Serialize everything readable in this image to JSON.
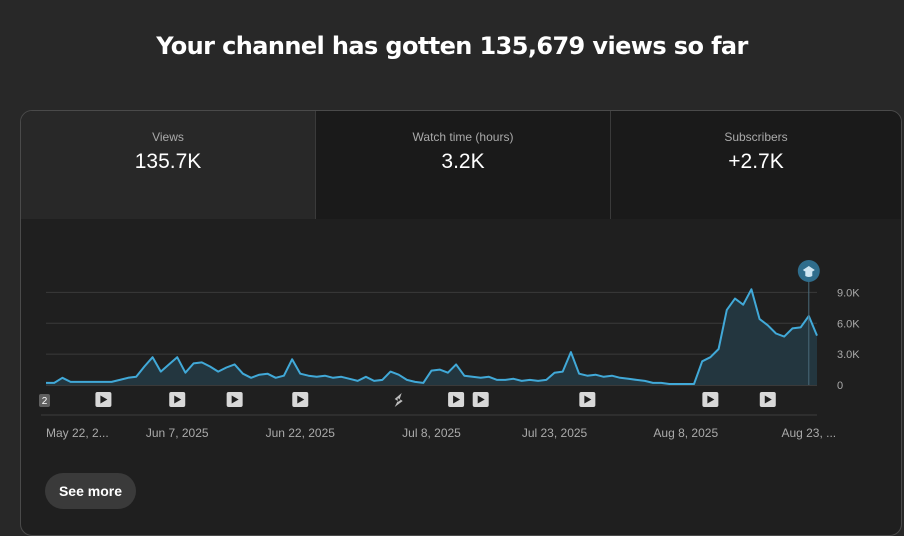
{
  "headline": "Your channel has gotten 135,679 views so far",
  "tabs": [
    {
      "label": "Views",
      "value": "135.7K"
    },
    {
      "label": "Watch time (hours)",
      "value": "3.2K"
    },
    {
      "label": "Subscribers",
      "value": "+2.7K"
    }
  ],
  "see_more_label": "See more",
  "colors": {
    "line": "#41a9d8",
    "area": "#23363f",
    "grid": "#3a3a3a"
  },
  "chart_data": {
    "type": "area",
    "series": [
      {
        "values": [
          200,
          200,
          700,
          300,
          300,
          300,
          300,
          300,
          300,
          500,
          700,
          800,
          1800,
          2700,
          1300,
          2000,
          2700,
          1200,
          2100,
          2200,
          1800,
          1300,
          1700,
          2000,
          1100,
          700,
          1000,
          1100,
          700,
          900,
          2500,
          1100,
          900,
          800,
          900,
          700,
          800,
          600,
          400,
          800,
          400,
          500,
          1300,
          1000,
          500,
          300,
          200,
          1400,
          1500,
          1200,
          2000,
          900,
          800,
          700,
          800,
          500,
          500,
          600,
          400,
          500,
          400,
          500,
          1200,
          1300,
          3200,
          1100,
          900,
          1000,
          800,
          900,
          700,
          600,
          500,
          400,
          200,
          200,
          100,
          100,
          100,
          100,
          2300,
          2700,
          3500,
          7300,
          8400,
          7800,
          9300,
          6400,
          5800,
          5000,
          4700,
          5500,
          5600,
          6700,
          4800
        ]
      }
    ],
    "y_ticks": [
      "9.0K",
      "6.0K",
      "3.0K",
      "0"
    ],
    "ylim": [
      0,
      10300
    ],
    "x_ticks": [
      {
        "label": "May 22, 2...",
        "day": 0
      },
      {
        "label": "Jun 7, 2025",
        "day": 16
      },
      {
        "label": "Jun 22, 2025",
        "day": 31
      },
      {
        "label": "Jul 8, 2025",
        "day": 47
      },
      {
        "label": "Jul 23, 2025",
        "day": 62
      },
      {
        "label": "Aug 8, 2025",
        "day": 78
      },
      {
        "label": "Aug 23, ...",
        "day": 93
      }
    ],
    "grid": true,
    "milestone_icon": "graduation-cap-icon",
    "milestone_day": 93,
    "upload_markers": [
      {
        "day": 0,
        "icon": "number-badge-icon",
        "text": "2"
      },
      {
        "day": 7,
        "icon": "play-icon"
      },
      {
        "day": 16,
        "icon": "play-icon"
      },
      {
        "day": 23,
        "icon": "play-icon"
      },
      {
        "day": 31,
        "icon": "play-icon"
      },
      {
        "day": 43,
        "icon": "shorts-icon"
      },
      {
        "day": 50,
        "icon": "play-icon"
      },
      {
        "day": 53,
        "icon": "play-icon"
      },
      {
        "day": 66,
        "icon": "play-icon"
      },
      {
        "day": 81,
        "icon": "play-icon"
      },
      {
        "day": 88,
        "icon": "play-icon"
      }
    ]
  }
}
